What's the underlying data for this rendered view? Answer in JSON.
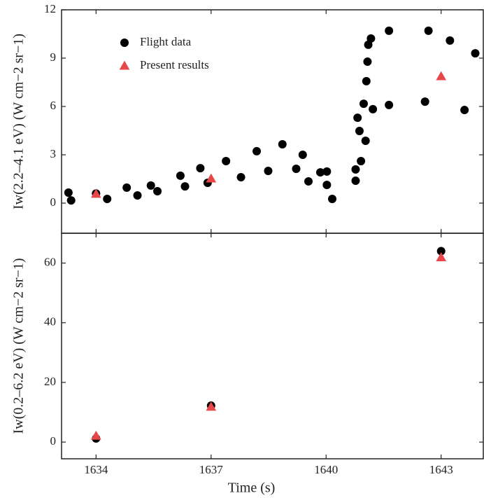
{
  "chart_data": [
    {
      "type": "scatter",
      "ylabel": "Iw(2.2–4.1 eV) (W cm−2 sr−1)",
      "xlim": [
        1633.1,
        1644.1
      ],
      "xticks": [
        1634,
        1637,
        1640,
        1643
      ],
      "ylim": [
        -1.87,
        12
      ],
      "yticks": [
        0,
        3,
        6,
        9,
        12
      ],
      "legend": "upper left",
      "series": [
        {
          "name": "Flight data",
          "color": "#000000",
          "marker": "circle",
          "x": [
            1633.28,
            1633.35,
            1634,
            1634.29,
            1634.8,
            1635.08,
            1635.43,
            1635.6,
            1636.2,
            1636.32,
            1636.72,
            1636.91,
            1637.39,
            1637.78,
            1638.19,
            1638.49,
            1638.86,
            1639.22,
            1639.39,
            1639.54,
            1639.85,
            1640.02,
            1640.02,
            1640.16,
            1640.77,
            1640.77,
            1640.82,
            1640.87,
            1640.91,
            1640.98,
            1641.03,
            1641.05,
            1641.08,
            1641.1,
            1641.17,
            1641.22,
            1641.64,
            1641.64,
            1642.58,
            1642.67,
            1643.23,
            1643.61,
            1643.89
          ],
          "values": [
            0.65,
            0.17,
            0.6,
            0.26,
            0.96,
            0.48,
            1.09,
            0.74,
            1.7,
            1.04,
            2.17,
            1.26,
            2.61,
            1.61,
            3.22,
            2.0,
            3.65,
            2.13,
            3.0,
            1.35,
            1.91,
            1.96,
            1.13,
            0.26,
            1.39,
            2.09,
            5.3,
            4.48,
            2.61,
            6.17,
            3.87,
            7.57,
            8.78,
            9.83,
            10.22,
            5.83,
            6.09,
            10.7,
            6.3,
            10.7,
            10.09,
            5.78,
            9.3
          ]
        },
        {
          "name": "Present results",
          "color": "#e8474a",
          "marker": "triangle",
          "x": [
            1634,
            1637,
            1643
          ],
          "values": [
            0.57,
            1.52,
            7.87
          ]
        }
      ]
    },
    {
      "type": "scatter",
      "ylabel": "Iw(0.2–6.2 eV) (W cm−2 sr−1)",
      "xlabel": "Time (s)",
      "xlim": [
        1633.1,
        1644.1
      ],
      "xticks": [
        1634,
        1637,
        1640,
        1643
      ],
      "ylim": [
        -5.6,
        70
      ],
      "yticks": [
        0,
        20,
        40,
        60
      ],
      "series": [
        {
          "color": "#000000",
          "marker": "circle",
          "x": [
            1634,
            1637,
            1643
          ],
          "values": [
            1.2,
            12.2,
            64
          ]
        },
        {
          "color": "#e8474a",
          "marker": "triangle",
          "x": [
            1634,
            1637,
            1643
          ],
          "values": [
            2.1,
            11.8,
            61.9
          ]
        }
      ]
    }
  ]
}
